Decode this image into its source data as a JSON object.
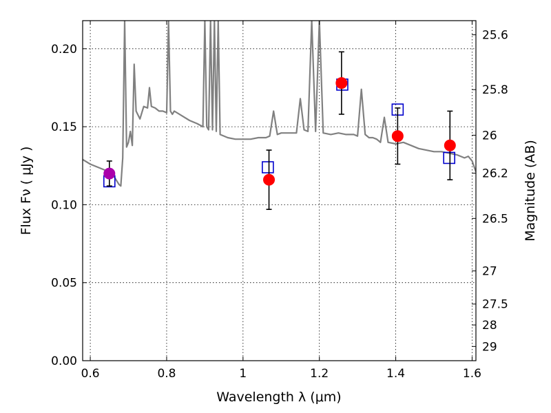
{
  "chart_data": {
    "type": "scatter",
    "xlabel": "Wavelength  λ (μm)",
    "ylabel": "Flux  Fν  ( μJy )",
    "y2label": "Magnitude (AB)",
    "xlim": [
      0.58,
      1.61
    ],
    "ylim": [
      0.0,
      0.218
    ],
    "grid": true,
    "x_ticks": [
      0.6,
      0.8,
      1.0,
      1.2,
      1.4,
      1.6
    ],
    "x_tick_labels": [
      "0.6",
      "0.8",
      "1",
      "1.2",
      "1.4",
      "1.6"
    ],
    "y_ticks": [
      0.0,
      0.05,
      0.1,
      0.15,
      0.2
    ],
    "y_tick_labels": [
      "0.00",
      "0.05",
      "0.10",
      "0.15",
      "0.20"
    ],
    "mag_ticks": [
      25.6,
      25.8,
      26,
      26.2,
      26.5,
      27,
      27.5,
      28,
      29
    ],
    "mag_tick_labels": [
      "25.6",
      "25.8",
      "26",
      "26.2",
      "26.5",
      "27",
      "27.5",
      "28",
      "29"
    ],
    "colors": {
      "model_line": "#808080",
      "model_photometry": "#0000cc",
      "observed": "#ff0000",
      "optical_point": "#aa00aa",
      "error_bar": "#000000"
    },
    "series": [
      {
        "type": "line",
        "color": "#808080",
        "x": [
          0.58,
          0.6,
          0.62,
          0.64,
          0.66,
          0.675,
          0.68,
          0.685,
          0.69,
          0.695,
          0.7,
          0.705,
          0.71,
          0.715,
          0.72,
          0.73,
          0.74,
          0.75,
          0.755,
          0.76,
          0.77,
          0.78,
          0.79,
          0.8,
          0.805,
          0.81,
          0.815,
          0.82,
          0.84,
          0.86,
          0.88,
          0.895,
          0.9,
          0.905,
          0.91,
          0.915,
          0.92,
          0.925,
          0.93,
          0.935,
          0.94,
          0.96,
          0.98,
          1.0,
          1.02,
          1.04,
          1.06,
          1.07,
          1.08,
          1.09,
          1.1,
          1.12,
          1.14,
          1.15,
          1.16,
          1.17,
          1.18,
          1.19,
          1.2,
          1.21,
          1.23,
          1.25,
          1.27,
          1.29,
          1.3,
          1.31,
          1.32,
          1.33,
          1.34,
          1.35,
          1.36,
          1.37,
          1.38,
          1.4,
          1.42,
          1.44,
          1.46,
          1.48,
          1.5,
          1.52,
          1.54,
          1.56,
          1.58,
          1.59,
          1.6,
          1.61
        ],
        "y": [
          0.129,
          0.126,
          0.124,
          0.122,
          0.119,
          0.113,
          0.112,
          0.13,
          0.218,
          0.137,
          0.14,
          0.147,
          0.138,
          0.19,
          0.16,
          0.155,
          0.163,
          0.162,
          0.175,
          0.163,
          0.162,
          0.16,
          0.16,
          0.159,
          0.218,
          0.16,
          0.158,
          0.16,
          0.157,
          0.154,
          0.152,
          0.15,
          0.218,
          0.15,
          0.148,
          0.218,
          0.148,
          0.218,
          0.147,
          0.218,
          0.145,
          0.143,
          0.142,
          0.142,
          0.142,
          0.143,
          0.143,
          0.144,
          0.16,
          0.145,
          0.146,
          0.146,
          0.146,
          0.168,
          0.148,
          0.147,
          0.218,
          0.147,
          0.218,
          0.146,
          0.145,
          0.146,
          0.145,
          0.145,
          0.144,
          0.174,
          0.145,
          0.143,
          0.143,
          0.142,
          0.14,
          0.156,
          0.14,
          0.139,
          0.14,
          0.138,
          0.136,
          0.135,
          0.134,
          0.134,
          0.133,
          0.132,
          0.13,
          0.131,
          0.128,
          0.121
        ]
      },
      {
        "type": "scatter",
        "marker": "open-square",
        "color": "#0000cc",
        "x": [
          0.65,
          1.065,
          1.26,
          1.405,
          1.54
        ],
        "y": [
          0.115,
          0.124,
          0.177,
          0.161,
          0.13
        ]
      },
      {
        "type": "scatter",
        "marker": "filled-circle",
        "color": "#ff0000",
        "x": [
          1.068,
          1.258,
          1.405,
          1.542
        ],
        "y": [
          0.116,
          0.178,
          0.144,
          0.138
        ],
        "yerr": [
          0.019,
          0.02,
          0.018,
          0.022
        ]
      },
      {
        "type": "scatter",
        "marker": "filled-circle",
        "color": "#aa00aa",
        "x": [
          0.65
        ],
        "y": [
          0.12
        ],
        "yerr": [
          0.008
        ]
      }
    ]
  }
}
